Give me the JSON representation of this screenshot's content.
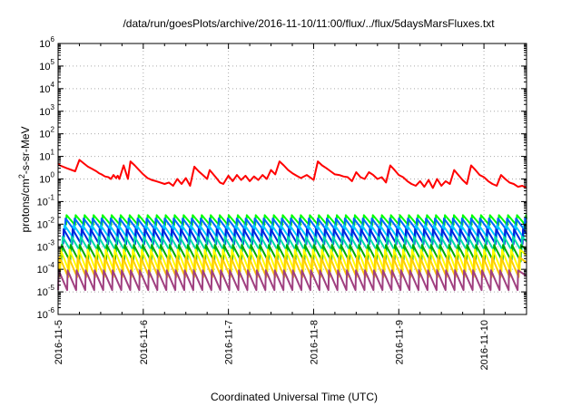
{
  "chart_data": {
    "type": "line",
    "title": "/data/run/goesPlots/archive/2016-11-10/11:00/flux/../flux/5daysMarsFluxes.txt",
    "xlabel": "Coordinated Universal Time (UTC)",
    "ylabel": {
      "before": "protons/cm",
      "sup": "2",
      "after": "-s-sr-MeV"
    },
    "yscale": "log",
    "ylim": [
      1e-06,
      1000000
    ],
    "y_tick_exponents": [
      -6,
      -5,
      -4,
      -3,
      -2,
      -1,
      0,
      1,
      2,
      3,
      4,
      5,
      6
    ],
    "y_tick_base": "10",
    "x_range_days": [
      "2016-11-05",
      "2016-11-10T12:00"
    ],
    "x_tick_labels": [
      "2016-11-5",
      "2016-11-6",
      "2016-11-7",
      "2016-11-8",
      "2016-11-9",
      "2016-11-10"
    ],
    "grid": true,
    "series": [
      {
        "color": "#ff0000",
        "x_days": [
          0,
          0.02,
          0.1,
          0.2,
          0.25,
          0.3,
          0.35,
          0.4,
          0.45,
          0.48,
          0.51,
          0.55,
          0.59,
          0.62,
          0.65,
          0.68,
          0.7,
          0.72,
          0.77,
          0.82,
          0.85,
          0.9,
          0.95,
          1.0,
          1.05,
          1.1,
          1.15,
          1.2,
          1.25,
          1.3,
          1.35,
          1.4,
          1.45,
          1.5,
          1.55,
          1.6,
          1.65,
          1.7,
          1.75,
          1.78,
          1.85,
          1.9,
          1.94,
          2.0,
          2.05,
          2.1,
          2.15,
          2.2,
          2.25,
          2.3,
          2.35,
          2.4,
          2.45,
          2.5,
          2.55,
          2.6,
          2.65,
          2.7,
          2.75,
          2.8,
          2.85,
          2.92,
          3.0,
          3.05,
          3.1,
          3.15,
          3.2,
          3.25,
          3.3,
          3.35,
          3.4,
          3.45,
          3.5,
          3.55,
          3.6,
          3.65,
          3.7,
          3.75,
          3.8,
          3.85,
          3.9,
          3.95,
          4.0,
          4.05,
          4.1,
          4.15,
          4.2,
          4.25,
          4.3,
          4.35,
          4.4,
          4.45,
          4.5,
          4.55,
          4.6,
          4.65,
          4.7,
          4.75,
          4.8,
          4.85,
          4.9,
          4.95,
          5.0,
          5.05,
          5.1,
          5.15,
          5.2,
          5.25,
          5.3,
          5.35,
          5.4,
          5.45,
          5.5
        ],
        "values": [
          5,
          4,
          3,
          2.2,
          7,
          5,
          3.5,
          2.8,
          2.2,
          1.8,
          1.6,
          1.3,
          1.2,
          1.0,
          1.5,
          1.1,
          1.4,
          1.0,
          4,
          1.0,
          6,
          4,
          2.5,
          1.6,
          1.1,
          0.9,
          0.8,
          0.7,
          0.6,
          0.7,
          0.5,
          1.0,
          0.6,
          1.1,
          0.5,
          3.5,
          2.2,
          1.5,
          1.0,
          2.5,
          1.2,
          0.7,
          0.6,
          1.4,
          0.8,
          1.5,
          0.9,
          1.4,
          0.8,
          1.3,
          0.9,
          1.5,
          1.0,
          2.5,
          1.6,
          6,
          4,
          2.5,
          1.8,
          1.4,
          1.1,
          1.5,
          0.9,
          6,
          4,
          3,
          2.2,
          1.6,
          1.5,
          1.3,
          1.2,
          0.8,
          2,
          1.2,
          1.0,
          2,
          1.5,
          1.0,
          1.2,
          0.7,
          4,
          2.5,
          1.5,
          1.2,
          0.8,
          0.6,
          0.5,
          0.8,
          0.45,
          0.9,
          0.4,
          1.0,
          0.5,
          0.8,
          0.6,
          2.5,
          1.5,
          0.9,
          0.6,
          4,
          2.5,
          1.5,
          1.2,
          0.8,
          0.6,
          0.5,
          1.5,
          1.0,
          0.7,
          0.6,
          0.45,
          0.5,
          0.4
        ]
      },
      {
        "color": "#00ff00",
        "max": 0.025,
        "min": 0.009,
        "cycles": 52
      },
      {
        "color": "#0066ff",
        "max": 0.018,
        "min": 0.0055,
        "cycles": 52
      },
      {
        "color": "#00ccff",
        "max": 0.009,
        "min": 0.0025,
        "cycles": 52
      },
      {
        "color": "#0022dd",
        "max": 0.006,
        "min": 0.0013,
        "cycles": 52
      },
      {
        "color": "#00ddaa",
        "max": 0.0028,
        "min": 0.0006,
        "cycles": 52
      },
      {
        "color": "#00aa00",
        "max": 0.0012,
        "min": 0.00022,
        "cycles": 52
      },
      {
        "color": "#ffff00",
        "max": 0.00075,
        "min": 8e-05,
        "cycles": 52
      },
      {
        "color": "#ffcc00",
        "max": 0.00035,
        "min": 4.5e-05,
        "cycles": 52
      },
      {
        "color": "#a04080",
        "max": 9e-05,
        "min": 1.2e-05,
        "cycles": 52
      }
    ]
  }
}
